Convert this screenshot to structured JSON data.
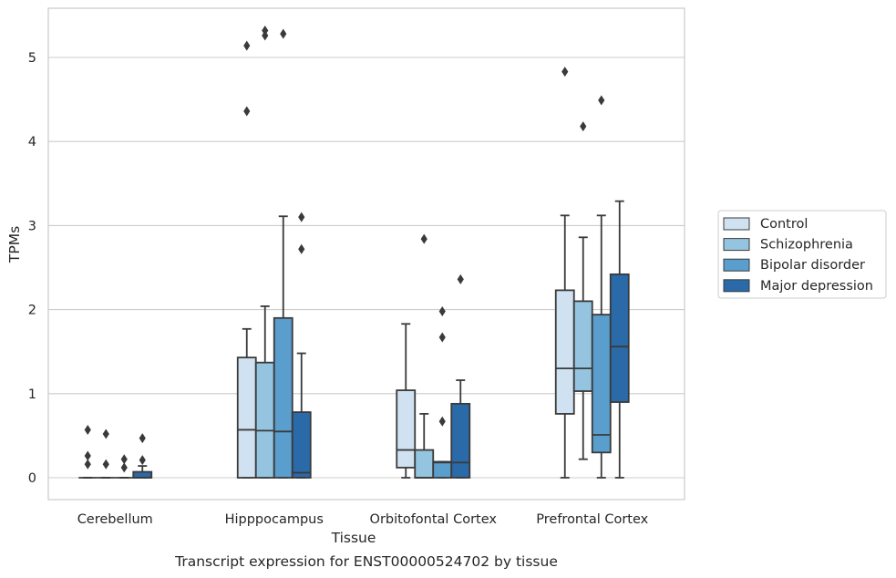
{
  "caption": "Transcript expression for ENST00000524702 by tissue",
  "chart_data": {
    "type": "boxplot",
    "title": "",
    "xlabel": "Tissue",
    "ylabel": "TPMs",
    "ylim": [
      -0.26,
      5.6
    ],
    "yticks": [
      0,
      1,
      2,
      3,
      4,
      5
    ],
    "grid": true,
    "legend_position": "right",
    "categories": [
      "Cerebellum",
      "Hipppocampus",
      "Orbitofontal Cortex",
      "Prefrontal Cortex"
    ],
    "series": [
      {
        "name": "Control",
        "color": "#d0e1f2",
        "boxes": [
          {
            "whislo": 0,
            "q1": 0,
            "med": 0,
            "q3": 0,
            "whishi": 0,
            "fliers": [
              0.57,
              0.26,
              0.16
            ]
          },
          {
            "whislo": 0,
            "q1": 0,
            "med": 0.57,
            "q3": 1.43,
            "whishi": 1.77,
            "fliers": [
              4.36,
              5.14
            ]
          },
          {
            "whislo": 0,
            "q1": 0.12,
            "med": 0.33,
            "q3": 1.04,
            "whishi": 1.83,
            "fliers": []
          },
          {
            "whislo": 0,
            "q1": 0.76,
            "med": 1.3,
            "q3": 2.23,
            "whishi": 3.12,
            "fliers": [
              4.83
            ]
          }
        ]
      },
      {
        "name": "Schizophrenia",
        "color": "#94c4df",
        "boxes": [
          {
            "whislo": 0,
            "q1": 0,
            "med": 0,
            "q3": 0,
            "whishi": 0,
            "fliers": [
              0.52,
              0.16
            ]
          },
          {
            "whislo": 0,
            "q1": 0,
            "med": 0.56,
            "q3": 1.37,
            "whishi": 2.04,
            "fliers": [
              5.26,
              5.32
            ]
          },
          {
            "whislo": 0,
            "q1": 0,
            "med": 0,
            "q3": 0.33,
            "whishi": 0.76,
            "fliers": [
              2.84
            ]
          },
          {
            "whislo": 0.22,
            "q1": 1.03,
            "med": 1.3,
            "q3": 2.1,
            "whishi": 2.86,
            "fliers": [
              4.18
            ]
          }
        ]
      },
      {
        "name": "Bipolar disorder",
        "color": "#5a9ecd",
        "boxes": [
          {
            "whislo": 0,
            "q1": 0,
            "med": 0,
            "q3": 0,
            "whishi": 0,
            "fliers": [
              0.22,
              0.12
            ]
          },
          {
            "whislo": 0,
            "q1": 0,
            "med": 0.55,
            "q3": 1.9,
            "whishi": 3.11,
            "fliers": [
              5.28
            ]
          },
          {
            "whislo": 0,
            "q1": 0,
            "med": 0.18,
            "q3": 0.19,
            "whishi": 0.19,
            "fliers": [
              0.67,
              1.67,
              1.98
            ]
          },
          {
            "whislo": 0,
            "q1": 0.3,
            "med": 0.51,
            "q3": 1.94,
            "whishi": 3.12,
            "fliers": [
              4.49
            ]
          }
        ]
      },
      {
        "name": "Major depression",
        "color": "#2b6aa8",
        "boxes": [
          {
            "whislo": 0,
            "q1": 0,
            "med": 0,
            "q3": 0.07,
            "whishi": 0.14,
            "fliers": [
              0.47,
              0.21
            ]
          },
          {
            "whislo": 0,
            "q1": 0,
            "med": 0.06,
            "q3": 0.78,
            "whishi": 1.48,
            "fliers": [
              2.72,
              3.1
            ]
          },
          {
            "whislo": 0,
            "q1": 0,
            "med": 0.18,
            "q3": 0.88,
            "whishi": 1.16,
            "fliers": [
              2.36
            ]
          },
          {
            "whislo": 0,
            "q1": 0.9,
            "med": 1.56,
            "q3": 2.42,
            "whishi": 3.29,
            "fliers": []
          }
        ]
      }
    ]
  }
}
